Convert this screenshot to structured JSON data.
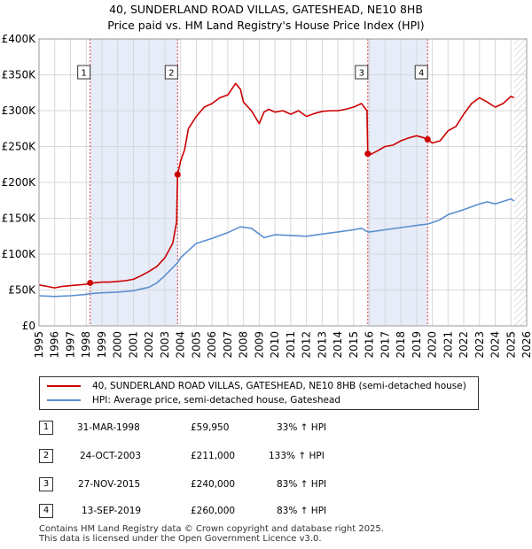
{
  "title": "40, SUNDERLAND ROAD VILLAS, GATESHEAD, NE10 8HB",
  "subtitle": "Price paid vs. HM Land Registry's House Price Index (HPI)",
  "legend": [
    {
      "label": "40, SUNDERLAND ROAD VILLAS, GATESHEAD, NE10 8HB (semi-detached house)",
      "color": "#cc0000"
    },
    {
      "label": "HPI: Average price, semi-detached house, Gateshead",
      "color": "#5b8fd0"
    }
  ],
  "transactions": [
    {
      "num": "1",
      "date": "31-MAR-1998",
      "price": "£59,950",
      "hpi": "33% ↑ HPI"
    },
    {
      "num": "2",
      "date": "24-OCT-2003",
      "price": "£211,000",
      "hpi": "133% ↑ HPI"
    },
    {
      "num": "3",
      "date": "27-NOV-2015",
      "price": "£240,000",
      "hpi": "83% ↑ HPI"
    },
    {
      "num": "4",
      "date": "13-SEP-2019",
      "price": "£260,000",
      "hpi": "83% ↑ HPI"
    }
  ],
  "footer": [
    "Contains HM Land Registry data © Crown copyright and database right 2025.",
    "This data is licensed under the Open Government Licence v3.0."
  ],
  "chart_data": {
    "type": "line",
    "xlim": [
      1995,
      2026
    ],
    "ylim": [
      0,
      400000
    ],
    "y_ticks": [
      {
        "value": 0,
        "label": "£0"
      },
      {
        "value": 50000,
        "label": "£50K"
      },
      {
        "value": 100000,
        "label": "£100K"
      },
      {
        "value": 150000,
        "label": "£150K"
      },
      {
        "value": 200000,
        "label": "£200K"
      },
      {
        "value": 250000,
        "label": "£250K"
      },
      {
        "value": 300000,
        "label": "£300K"
      },
      {
        "value": 350000,
        "label": "£350K"
      },
      {
        "value": 400000,
        "label": "£400K"
      }
    ],
    "x_ticks": [
      "1995",
      "1996",
      "1997",
      "1998",
      "1999",
      "2000",
      "2001",
      "2002",
      "2003",
      "2004",
      "2005",
      "2006",
      "2007",
      "2008",
      "2009",
      "2010",
      "2011",
      "2012",
      "2013",
      "2014",
      "2015",
      "2016",
      "2017",
      "2018",
      "2019",
      "2020",
      "2021",
      "2022",
      "2023",
      "2024",
      "2025",
      "2026"
    ],
    "grid": true,
    "shaded_spans": [
      [
        1998.25,
        2003.81
      ],
      [
        2015.9,
        2019.7
      ]
    ],
    "forecast_start": 2025.2,
    "markers": [
      {
        "num": "1",
        "x": 1998.25,
        "y": 59950
      },
      {
        "num": "2",
        "x": 2003.81,
        "y": 211000
      },
      {
        "num": "3",
        "x": 2015.9,
        "y": 240000
      },
      {
        "num": "4",
        "x": 2019.7,
        "y": 260000
      }
    ],
    "series": [
      {
        "name": "40, SUNDERLAND ROAD VILLAS, GATESHEAD, NE10 8HB (semi-detached house)",
        "color": "#cc0000",
        "x": [
          1995.0,
          1995.5,
          1996.0,
          1996.5,
          1997.0,
          1997.5,
          1998.0,
          1998.25,
          1998.5,
          1999.0,
          1999.5,
          2000.0,
          2000.5,
          2001.0,
          2001.5,
          2002.0,
          2002.5,
          2003.0,
          2003.5,
          2003.75,
          2003.81,
          2004.0,
          2004.25,
          2004.5,
          2005.0,
          2005.5,
          2006.0,
          2006.5,
          2007.0,
          2007.5,
          2007.8,
          2008.0,
          2008.5,
          2009.0,
          2009.3,
          2009.6,
          2010.0,
          2010.5,
          2011.0,
          2011.5,
          2012.0,
          2012.5,
          2013.0,
          2013.5,
          2014.0,
          2014.5,
          2015.0,
          2015.5,
          2015.85,
          2015.9,
          2016.0,
          2016.5,
          2017.0,
          2017.5,
          2018.0,
          2018.5,
          2019.0,
          2019.5,
          2019.7,
          2020.0,
          2020.5,
          2021.0,
          2021.5,
          2022.0,
          2022.5,
          2023.0,
          2023.5,
          2024.0,
          2024.5,
          2025.0,
          2025.2
        ],
        "y": [
          57000,
          55000,
          53000,
          55000,
          56000,
          57000,
          58000,
          59950,
          60000,
          61000,
          61000,
          62000,
          63000,
          65000,
          70000,
          76000,
          83000,
          95000,
          115000,
          145000,
          211000,
          230000,
          245000,
          275000,
          292000,
          305000,
          310000,
          318000,
          322000,
          338000,
          330000,
          312000,
          300000,
          282000,
          298000,
          302000,
          298000,
          300000,
          295000,
          300000,
          292000,
          296000,
          299000,
          300000,
          300000,
          302000,
          305000,
          310000,
          300000,
          240000,
          238000,
          244000,
          250000,
          252000,
          258000,
          262000,
          265000,
          262000,
          260000,
          255000,
          258000,
          272000,
          278000,
          295000,
          310000,
          318000,
          312000,
          305000,
          310000,
          320000,
          318000
        ]
      },
      {
        "name": "HPI: Average price, semi-detached house, Gateshead",
        "color": "#5b8fd0",
        "x": [
          1995.0,
          1996.0,
          1997.0,
          1998.0,
          1998.25,
          1999.0,
          2000.0,
          2001.0,
          2002.0,
          2002.5,
          2003.0,
          2003.81,
          2004.0,
          2004.5,
          2005.0,
          2006.0,
          2007.0,
          2007.8,
          2008.5,
          2009.0,
          2009.3,
          2010.0,
          2011.0,
          2012.0,
          2013.0,
          2014.0,
          2015.0,
          2015.5,
          2015.9,
          2016.0,
          2017.0,
          2018.0,
          2019.0,
          2019.7,
          2020.0,
          2020.5,
          2021.0,
          2022.0,
          2023.0,
          2023.5,
          2024.0,
          2025.0,
          2025.2
        ],
        "y": [
          42000,
          41000,
          42000,
          44000,
          45000,
          46000,
          47000,
          49000,
          54000,
          60000,
          70000,
          88000,
          95000,
          105000,
          115000,
          122000,
          130000,
          138000,
          136000,
          128000,
          123000,
          127000,
          126000,
          125000,
          128000,
          131000,
          134000,
          136000,
          131000,
          131000,
          134000,
          137000,
          140000,
          142000,
          144000,
          148000,
          155000,
          162000,
          170000,
          173000,
          170000,
          177000,
          174000
        ]
      }
    ]
  }
}
